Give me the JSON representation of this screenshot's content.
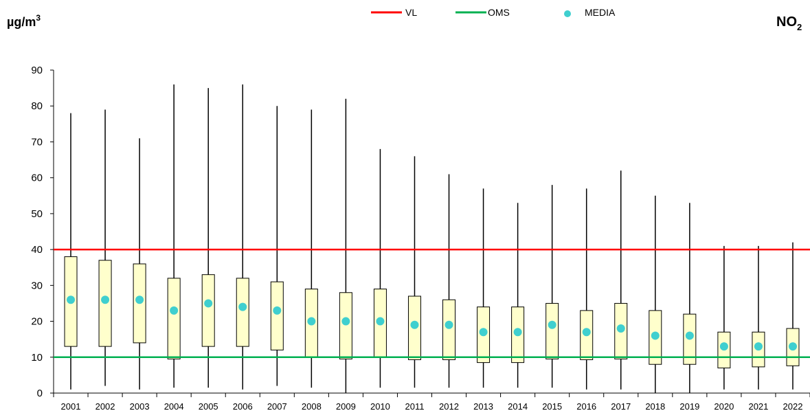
{
  "chart_data": {
    "type": "boxplot",
    "unit": {
      "prefix": "µg/m",
      "superscript": "3"
    },
    "pollutant": {
      "main": "NO",
      "subscript": "2"
    },
    "legend": [
      {
        "label": "VL",
        "kind": "line",
        "color": "#ff0000"
      },
      {
        "label": "OMS",
        "kind": "line",
        "color": "#00b050"
      },
      {
        "label": "MEDIA",
        "kind": "marker",
        "color": "#3fcfcf"
      }
    ],
    "reference_lines": {
      "VL": 40,
      "OMS": 10
    },
    "ylim": [
      0,
      90
    ],
    "yticks": [
      0,
      10,
      20,
      30,
      40,
      50,
      60,
      70,
      80,
      90
    ],
    "categories": [
      "2001",
      "2002",
      "2003",
      "2004",
      "2005",
      "2006",
      "2007",
      "2008",
      "2009",
      "2010",
      "2011",
      "2012",
      "2013",
      "2014",
      "2015",
      "2016",
      "2017",
      "2018",
      "2019",
      "2020",
      "2021",
      "2022"
    ],
    "boxes": [
      {
        "min": 1,
        "q1": 13,
        "q3": 38,
        "max": 78,
        "mean": 26
      },
      {
        "min": 2,
        "q1": 13,
        "q3": 37,
        "max": 79,
        "mean": 26
      },
      {
        "min": 1,
        "q1": 14,
        "q3": 36,
        "max": 71,
        "mean": 26
      },
      {
        "min": 1.5,
        "q1": 9.5,
        "q3": 32,
        "max": 86,
        "mean": 23
      },
      {
        "min": 1.5,
        "q1": 13,
        "q3": 33,
        "max": 85,
        "mean": 25
      },
      {
        "min": 1,
        "q1": 13,
        "q3": 32,
        "max": 86,
        "mean": 24
      },
      {
        "min": 2,
        "q1": 12,
        "q3": 31,
        "max": 80,
        "mean": 23
      },
      {
        "min": 1.5,
        "q1": 10,
        "q3": 29,
        "max": 79,
        "mean": 20
      },
      {
        "min": 0,
        "q1": 9.5,
        "q3": 28,
        "max": 82,
        "mean": 20
      },
      {
        "min": 1.5,
        "q1": 10,
        "q3": 29,
        "max": 68,
        "mean": 20
      },
      {
        "min": 1.5,
        "q1": 9.3,
        "q3": 27,
        "max": 66,
        "mean": 19
      },
      {
        "min": 1.5,
        "q1": 9.3,
        "q3": 26,
        "max": 61,
        "mean": 19
      },
      {
        "min": 1.5,
        "q1": 8.5,
        "q3": 24,
        "max": 57,
        "mean": 17
      },
      {
        "min": 1.5,
        "q1": 8.5,
        "q3": 24,
        "max": 53,
        "mean": 17
      },
      {
        "min": 1.5,
        "q1": 9.5,
        "q3": 25,
        "max": 58,
        "mean": 19
      },
      {
        "min": 1,
        "q1": 9.3,
        "q3": 23,
        "max": 57,
        "mean": 17
      },
      {
        "min": 1,
        "q1": 9.5,
        "q3": 25,
        "max": 62,
        "mean": 18
      },
      {
        "min": 0,
        "q1": 8,
        "q3": 23,
        "max": 55,
        "mean": 16
      },
      {
        "min": 0,
        "q1": 8,
        "q3": 22,
        "max": 53,
        "mean": 16
      },
      {
        "min": 1,
        "q1": 7,
        "q3": 17,
        "max": 41,
        "mean": 13
      },
      {
        "min": 1,
        "q1": 7.3,
        "q3": 17,
        "max": 41,
        "mean": 13
      },
      {
        "min": 1,
        "q1": 7.6,
        "q3": 18,
        "max": 42,
        "mean": 13
      }
    ],
    "colors": {
      "box_fill": "#ffffcc",
      "box_stroke": "#000000",
      "whisker": "#000000",
      "axis": "#000000"
    },
    "grid": false,
    "legend_position": "top-center"
  }
}
